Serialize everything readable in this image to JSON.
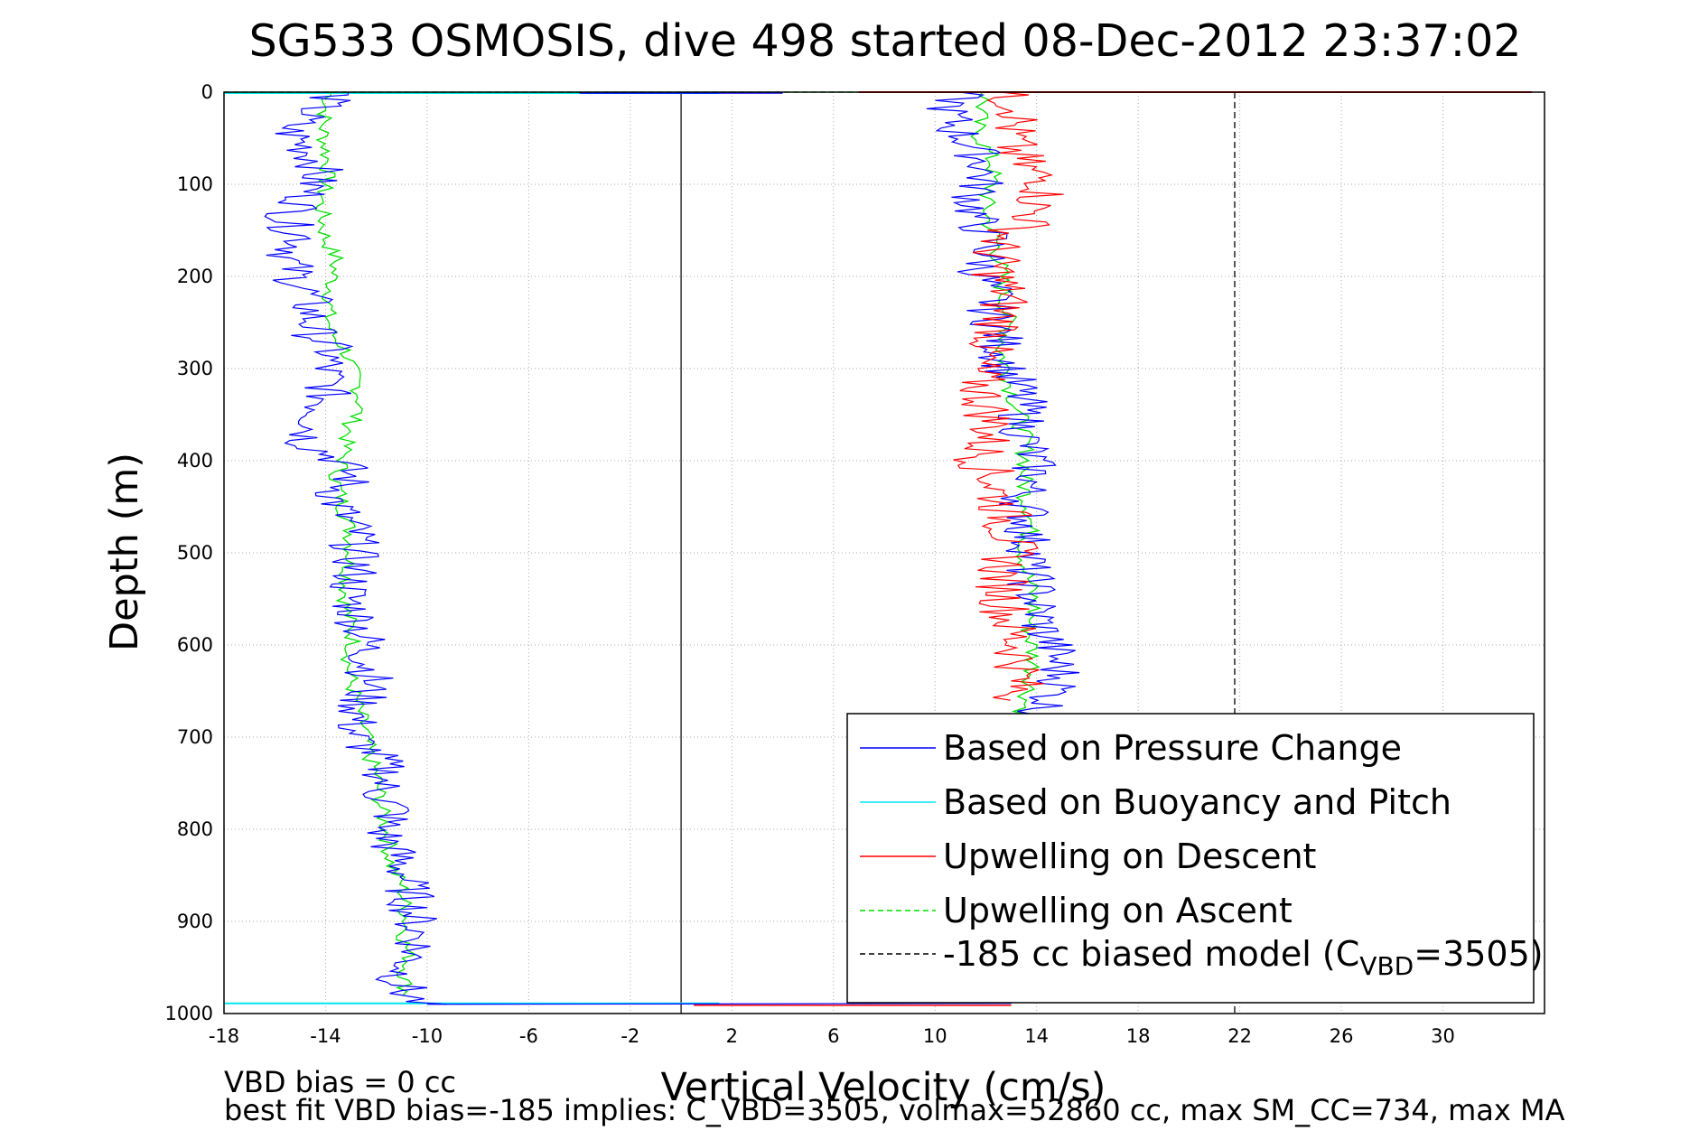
{
  "chart_data": {
    "type": "line",
    "title": "SG533 OSMOSIS, dive 498 started 08-Dec-2012 23:37:02",
    "xlabel": "Vertical Velocity (cm/s)",
    "ylabel": "Depth (m)",
    "xlim": [
      -18,
      34
    ],
    "ylim": [
      0,
      1000
    ],
    "y_reversed": true,
    "grid": true,
    "x_ticks": [
      "-18",
      "-14",
      "-10",
      "-6",
      "-2",
      "2",
      "6",
      "10",
      "14",
      "18",
      "22",
      "26",
      "30"
    ],
    "y_ticks": [
      "0",
      "100",
      "200",
      "300",
      "400",
      "500",
      "600",
      "700",
      "800",
      "900",
      "1000"
    ],
    "legend_position": "bottom-right",
    "series": [
      {
        "name": "Based on Pressure Change",
        "color": "#0000ff",
        "style": "solid",
        "depth": [
          0,
          20,
          40,
          60,
          80,
          100,
          120,
          140,
          160,
          180,
          200,
          220,
          240,
          260,
          280,
          300,
          320,
          340,
          360,
          380,
          400,
          420,
          440,
          460,
          480,
          500,
          520,
          540,
          560,
          580,
          600,
          620,
          640,
          660,
          680,
          700,
          720,
          740,
          760,
          780,
          800,
          820,
          840,
          860,
          880,
          900,
          920,
          940,
          960,
          980,
          990
        ],
        "descent_velocity": [
          -13.5,
          -14.5,
          -15.5,
          -14.8,
          -14.2,
          -14.5,
          -14.9,
          -15.6,
          -14.8,
          -15.5,
          -15.2,
          -14.7,
          -14.6,
          -14.5,
          -13.8,
          -14.0,
          -13.9,
          -14.1,
          -14.4,
          -14.8,
          -13.4,
          -13.0,
          -13.7,
          -13.3,
          -12.8,
          -12.9,
          -12.8,
          -13.1,
          -12.9,
          -12.6,
          -12.4,
          -12.3,
          -12.2,
          -12.6,
          -12.8,
          -12.9,
          -12.0,
          -11.6,
          -11.9,
          -11.2,
          -11.8,
          -11.4,
          -11.0,
          -10.8,
          -10.6,
          -10.5,
          -10.3,
          -10.6,
          -11.1,
          -10.8,
          -10.2
        ],
        "ascent_velocity": [
          11.0,
          10.5,
          10.8,
          11.5,
          12.0,
          11.8,
          11.5,
          11.6,
          12.2,
          12.0,
          11.8,
          12.3,
          12.2,
          12.5,
          12.6,
          12.8,
          13.2,
          13.5,
          13.4,
          13.6,
          13.8,
          13.9,
          13.4,
          13.7,
          13.6,
          13.8,
          13.6,
          13.9,
          14.0,
          14.2,
          14.6,
          14.8,
          15.0,
          14.5,
          14.0
        ]
      },
      {
        "name": "Based on Buoyancy and Pitch",
        "color": "#00e5ee",
        "style": "solid"
      },
      {
        "name": "Upwelling on Descent",
        "color": "#ff0000",
        "style": "solid",
        "depth": [
          0,
          20,
          40,
          60,
          80,
          100,
          120,
          140,
          160,
          180,
          200,
          220,
          240,
          260,
          280,
          300,
          320,
          340,
          360,
          380,
          400,
          420,
          440,
          460,
          480,
          500,
          520,
          540,
          560,
          580,
          600,
          620,
          640,
          660
        ],
        "values": [
          12.5,
          13.5,
          13.0,
          13.0,
          13.5,
          14.5,
          14.0,
          13.8,
          12.5,
          12.3,
          12.5,
          12.8,
          12.6,
          12.6,
          12.0,
          11.6,
          11.8,
          12.0,
          12.3,
          12.0,
          11.8,
          12.3,
          12.5,
          12.8,
          12.9,
          13.0,
          12.6,
          12.7,
          12.8,
          13.0,
          13.2,
          13.4,
          13.3,
          13.1
        ]
      },
      {
        "name": "Upwelling on Ascent",
        "color": "#00dd00",
        "style": "dashed",
        "depth": [
          0,
          20,
          40,
          60,
          80,
          100,
          120,
          140,
          160,
          180,
          200,
          220,
          240,
          260,
          280,
          300,
          320,
          340,
          360,
          380,
          400,
          420,
          440,
          460,
          480,
          500,
          520,
          540,
          560,
          580,
          600,
          620,
          640,
          660,
          680,
          700,
          720,
          740,
          760,
          780,
          800,
          820,
          840,
          860,
          880,
          900,
          920,
          940,
          960,
          980
        ],
        "descent_velocity": [
          -13.8,
          -14.0,
          -14.1,
          -14.0,
          -13.9,
          -14.0,
          -14.2,
          -14.1,
          -14.0,
          -13.6,
          -13.7,
          -13.8,
          -13.9,
          -13.8,
          -13.2,
          -13.0,
          -12.7,
          -12.6,
          -13.0,
          -13.2,
          -13.3,
          -13.6,
          -13.4,
          -13.2,
          -13.0,
          -13.0,
          -13.1,
          -13.2,
          -13.2,
          -13.0,
          -12.9,
          -13.1,
          -13.0,
          -12.8,
          -12.6,
          -12.4,
          -12.3,
          -12.0,
          -11.9,
          -11.8,
          -11.6,
          -11.5,
          -11.4,
          -11.0,
          -10.9,
          -10.8,
          -10.9,
          -10.7,
          -10.9,
          -10.8
        ],
        "ascent_velocity": [
          12.0,
          11.8,
          11.6,
          12.0,
          12.3,
          12.2,
          12.0,
          12.1,
          12.4,
          12.5,
          12.6,
          12.7,
          12.8,
          12.9,
          12.6,
          12.8,
          13.0,
          13.2,
          13.4,
          13.5,
          13.6,
          13.5,
          13.6,
          13.8,
          13.7,
          13.5,
          13.6,
          13.8,
          13.9,
          13.7,
          13.8,
          13.9,
          13.8,
          13.6,
          13.4
        ]
      },
      {
        "name": "-185 cc biased model (C",
        "name_sub": "VBD",
        "name_tail": "=3505)",
        "color": "#000000",
        "style": "dashed",
        "x_value": 21.8
      }
    ],
    "reference_line_x": 0,
    "annotations": {
      "vbd_bias": "VBD bias = 0 cc",
      "best_fit": "best fit VBD bias=-185 implies: C_VBD=3505, volmax=52860 cc, max SM_CC=734, max MA"
    }
  }
}
